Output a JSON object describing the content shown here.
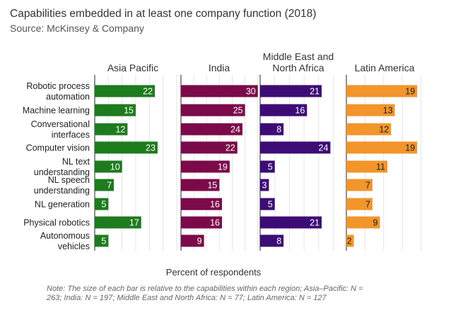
{
  "chart_data": {
    "type": "bar",
    "orientation": "horizontal",
    "title": "Capabilities embedded in at least one company function (2018)",
    "subtitle": "Source: McKinsey & Company",
    "xlabel": "Percent of respondents",
    "note": [
      "Note: The size of each bar is relative to the capabilities within each region; Asia–Pacific: N =",
      "263; India: N = 197; Middle East and North Africa: N = 77; Latin America: N = 127"
    ],
    "categories": [
      [
        "Robotic process",
        "automation"
      ],
      [
        "Machine learning"
      ],
      [
        "Conversational",
        "interfaces"
      ],
      [
        "Computer vision"
      ],
      [
        "NL text",
        "understanding"
      ],
      [
        "NL speech",
        "understanding"
      ],
      [
        "NL generation"
      ],
      [
        "Physical robotics"
      ],
      [
        "Autonomous",
        "vehicles"
      ]
    ],
    "series": [
      {
        "name": "Asia Pacific",
        "title_lines": [
          "Asia Pacific"
        ],
        "color": "#1e7b1e",
        "label_color": "#ffffff",
        "xlim": [
          0,
          30
        ],
        "values": [
          22,
          15,
          12,
          23,
          10,
          7,
          5,
          17,
          5
        ]
      },
      {
        "name": "India",
        "title_lines": [
          "India"
        ],
        "color": "#7b0a4a",
        "label_color": "#ffffff",
        "xlim": [
          0,
          32
        ],
        "values": [
          30,
          25,
          24,
          22,
          19,
          15,
          16,
          16,
          9
        ]
      },
      {
        "name": "Middle East and North Africa",
        "title_lines": [
          "Middle East and",
          "North Africa"
        ],
        "color": "#3d0c75",
        "label_color": "#ffffff",
        "xlim": [
          0,
          28
        ],
        "values": [
          21,
          16,
          8,
          24,
          5,
          3,
          5,
          21,
          8
        ]
      },
      {
        "name": "Latin America",
        "title_lines": [
          "Latin America"
        ],
        "color": "#f2952b",
        "label_color": "#222222",
        "xlim": [
          0,
          22
        ],
        "values": [
          19,
          13,
          12,
          19,
          11,
          7,
          7,
          9,
          2
        ]
      }
    ],
    "grid": true
  }
}
